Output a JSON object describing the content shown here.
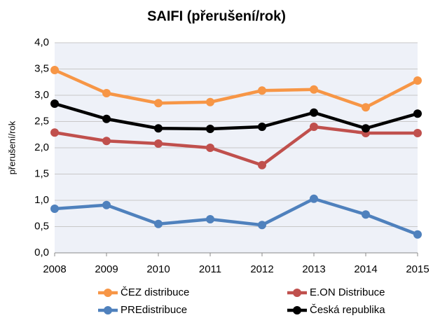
{
  "chart_data": {
    "type": "line",
    "title": "SAIFI (přerušení/rok)",
    "y_label": "přerušení/rok",
    "x": [
      2008,
      2009,
      2010,
      2011,
      2012,
      2013,
      2014,
      2015
    ],
    "xlim": [
      2008,
      2015
    ],
    "xticks": [
      2008,
      2009,
      2010,
      2011,
      2012,
      2013,
      2014,
      2015
    ],
    "ylim": [
      0,
      4
    ],
    "yticks": [
      {
        "value": 0,
        "label": "0,0"
      },
      {
        "value": 0.5,
        "label": "0,5"
      },
      {
        "value": 1,
        "label": "1,0"
      },
      {
        "value": 1.5,
        "label": "1,5"
      },
      {
        "value": 2,
        "label": "2,0"
      },
      {
        "value": 2.5,
        "label": "2,5"
      },
      {
        "value": 3,
        "label": "3,0"
      },
      {
        "value": 3.5,
        "label": "3,5"
      },
      {
        "value": 4,
        "label": "4,0"
      }
    ],
    "grid": true,
    "series": [
      {
        "name": "ČEZ distribuce",
        "color": "#f79646",
        "values": [
          3.48,
          3.04,
          2.85,
          2.87,
          3.09,
          3.11,
          2.77,
          3.28
        ]
      },
      {
        "name": "E.ON Distribuce",
        "color": "#c0504d",
        "values": [
          2.29,
          2.13,
          2.08,
          2.0,
          1.67,
          2.4,
          2.28,
          2.28
        ]
      },
      {
        "name": "PREdistribuce",
        "color": "#4f81bd",
        "values": [
          0.84,
          0.91,
          0.55,
          0.64,
          0.53,
          1.03,
          0.73,
          0.35
        ]
      },
      {
        "name": "Česká republika",
        "color": "#000000",
        "values": [
          2.84,
          2.55,
          2.37,
          2.36,
          2.4,
          2.67,
          2.37,
          2.65
        ]
      }
    ]
  }
}
